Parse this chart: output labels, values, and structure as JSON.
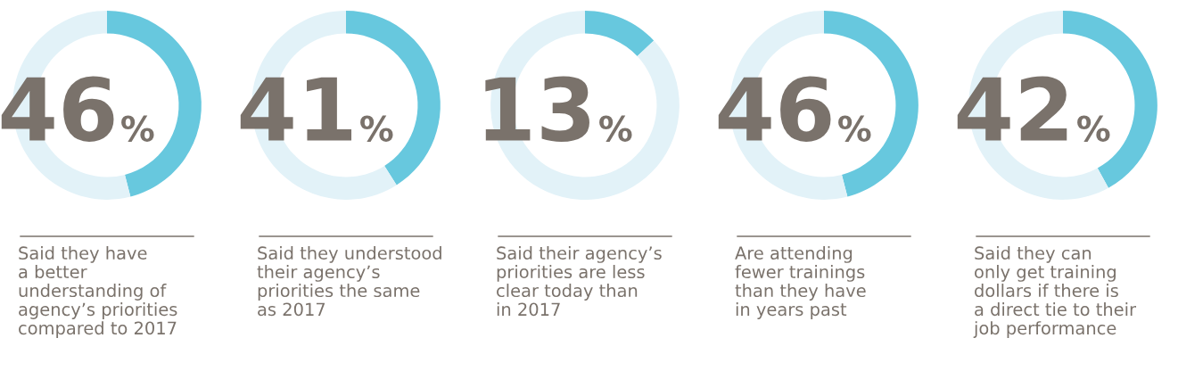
{
  "chart_data": [
    {
      "type": "donut",
      "categories": [
        null,
        null
      ],
      "values": [
        46,
        54
      ],
      "colors": [
        "#67c8de",
        "#e2f2f8"
      ],
      "title": "46%",
      "annotations": [
        "Said they have\na better\nunderstanding of\nagency’s priorities\ncompared to 2017"
      ]
    },
    {
      "type": "donut",
      "categories": [
        null,
        null
      ],
      "values": [
        41,
        59
      ],
      "colors": [
        "#67c8de",
        "#e2f2f8"
      ],
      "title": "41%",
      "annotations": [
        "Said they understood\ntheir agency’s\npriorities the same\nas 2017"
      ]
    },
    {
      "type": "donut",
      "categories": [
        null,
        null
      ],
      "values": [
        13,
        87
      ],
      "colors": [
        "#67c8de",
        "#e2f2f8"
      ],
      "title": "13%",
      "annotations": [
        "Said their agency’s\npriorities are less\nclear today than\nin 2017"
      ]
    },
    {
      "type": "donut",
      "categories": [
        null,
        null
      ],
      "values": [
        46,
        54
      ],
      "colors": [
        "#67c8de",
        "#e2f2f8"
      ],
      "title": "46%",
      "annotations": [
        "Are attending\nfewer trainings\nthan they have\nin years past"
      ]
    },
    {
      "type": "donut",
      "categories": [
        null,
        null
      ],
      "values": [
        42,
        58
      ],
      "colors": [
        "#67c8de",
        "#e2f2f8"
      ],
      "title": "42%",
      "annotations": [
        "Said they can\nonly get training\ndollars if there is\na direct tie to their\njob performance"
      ]
    }
  ]
}
